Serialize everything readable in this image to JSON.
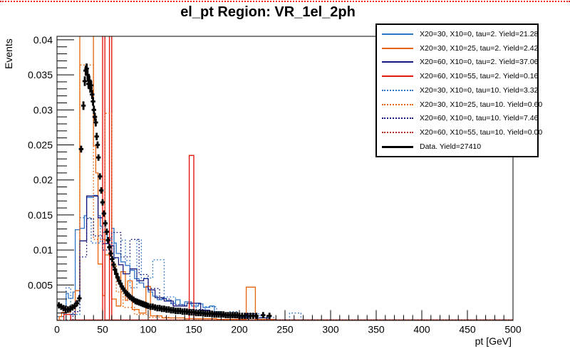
{
  "canvas": {
    "top_line_color": "#e02020",
    "background": "#ffffff"
  },
  "chart_data": {
    "type": "bar",
    "subtype": "overlaid-step-histograms-with-data-points",
    "title": "el_pt Region: VR_1el_2ph",
    "xlabel": "pt [GeV]",
    "ylabel": "Events",
    "xlim": [
      0,
      500
    ],
    "ylim": [
      0,
      0.0405
    ],
    "grid": false,
    "legend_position": "top-right",
    "x_major_ticks": [
      0,
      50,
      100,
      150,
      200,
      250,
      300,
      350,
      400,
      450,
      500
    ],
    "x_minor_step": 10,
    "y_major_ticks": [
      {
        "value": 0.005,
        "label": "0.005"
      },
      {
        "value": 0.01,
        "label": "0.01"
      },
      {
        "value": 0.015,
        "label": "0.015"
      },
      {
        "value": 0.02,
        "label": "0.02"
      },
      {
        "value": 0.025,
        "label": "0.025"
      },
      {
        "value": 0.03,
        "label": "0.03"
      },
      {
        "value": 0.035,
        "label": "0.035"
      },
      {
        "value": 0.04,
        "label": "0.04"
      }
    ],
    "y_minor_step": 0.001,
    "series": [
      {
        "name": "x20-30-x10-0-tau2",
        "label": "X20=30, X10=0, tau=2. Yield=21.28",
        "color": "#2e75c8",
        "line_style": "solid",
        "line_width": 1.3,
        "bins": [
          [
            0,
            0.0005
          ],
          [
            7.5,
            0.001
          ],
          [
            10,
            0.0038
          ],
          [
            12.5,
            0.0031
          ],
          [
            17.5,
            0.004
          ],
          [
            20,
            0.0129
          ],
          [
            25,
            0.0131
          ],
          [
            30,
            0.0149
          ],
          [
            32.5,
            0.0175
          ],
          [
            40,
            0.0178
          ],
          [
            45,
            0.0149
          ],
          [
            47.5,
            0.0134
          ],
          [
            50,
            0.0125
          ],
          [
            55,
            0.0117
          ],
          [
            60,
            0.0131
          ],
          [
            62.5,
            0.011
          ],
          [
            65,
            0.0095
          ],
          [
            70,
            0.0083
          ],
          [
            75,
            0.0078
          ],
          [
            80,
            0.0071
          ],
          [
            85,
            0.0059
          ],
          [
            90,
            0.0053
          ],
          [
            95,
            0.0047
          ],
          [
            100,
            0.004
          ],
          [
            105,
            0.0034
          ],
          [
            110,
            0.0029
          ],
          [
            115,
            0.0031
          ],
          [
            120,
            0.0028
          ],
          [
            125,
            0.0024
          ],
          [
            130,
            0.0029
          ],
          [
            135,
            0.0022
          ],
          [
            140,
            0.0026
          ],
          [
            147.5,
            0.002
          ],
          [
            155,
            0.0023
          ],
          [
            160,
            0.0018
          ],
          [
            167.5,
            0.002
          ],
          [
            172.5,
            0.0012
          ],
          [
            180,
            0.0008
          ],
          [
            190,
            0.0005
          ],
          [
            200,
            0.0003
          ],
          [
            210,
            0
          ],
          [
            500,
            0
          ]
        ]
      },
      {
        "name": "x20-30-x10-25-tau2",
        "label": "X20=30, X10=25, tau=2. Yield=2.42",
        "color": "#e8650e",
        "line_style": "solid",
        "line_width": 1.3,
        "bins": [
          [
            2.5,
            0.0005
          ],
          [
            5,
            0.0011
          ],
          [
            15,
            0.0021
          ],
          [
            20,
            0.0042
          ],
          [
            25,
            0.043
          ],
          [
            40,
            0.0249
          ],
          [
            42.5,
            0.021
          ],
          [
            45,
            0.008
          ],
          [
            50,
            0.0035
          ],
          [
            52.5,
            0.0093
          ],
          [
            60,
            0.003
          ],
          [
            65,
            0.002
          ],
          [
            70,
            0.0069
          ],
          [
            75,
            0.0028
          ],
          [
            77.5,
            0.0056
          ],
          [
            82.5,
            0.0015
          ],
          [
            90,
            0.001
          ],
          [
            97.5,
            0.0048
          ],
          [
            102.5,
            0.0006
          ],
          [
            115,
            0.0003
          ],
          [
            140,
            0.0002
          ],
          [
            175,
            0.0001
          ],
          [
            207.5,
            0.0047
          ],
          [
            217.5,
            0.0001
          ],
          [
            240,
            0
          ],
          [
            500,
            0
          ]
        ]
      },
      {
        "name": "x20-60-x10-0-tau2",
        "label": "X20=60, X10=0, tau=2. Yield=37.06",
        "color": "#17177c",
        "line_style": "solid",
        "line_width": 1.3,
        "bins": [
          [
            15,
            0.0008
          ],
          [
            20,
            0.0027
          ],
          [
            25,
            0.0113
          ],
          [
            32.5,
            0.0177
          ],
          [
            45,
            0.0146
          ],
          [
            50,
            0.0109
          ],
          [
            57.5,
            0.0106
          ],
          [
            62.5,
            0.0089
          ],
          [
            67.5,
            0.0079
          ],
          [
            72.5,
            0.0066
          ],
          [
            80,
            0.0073
          ],
          [
            87.5,
            0.0056
          ],
          [
            95,
            0.0059
          ],
          [
            100,
            0.0043
          ],
          [
            107.5,
            0.0032
          ],
          [
            117.5,
            0.0027
          ],
          [
            127.5,
            0.002
          ],
          [
            142.5,
            0.0024
          ],
          [
            157.5,
            0.0014
          ],
          [
            167.5,
            0.001
          ],
          [
            180,
            0.0006
          ],
          [
            195,
            0.0003
          ],
          [
            207.5,
            0.0009
          ],
          [
            217.5,
            0.0003
          ],
          [
            232.5,
            0
          ],
          [
            500,
            0
          ]
        ]
      },
      {
        "name": "x20-60-x10-55-tau2",
        "label": "X20=60, X10=55, tau=2. Yield=0.16",
        "color": "#e41a10",
        "line_style": "solid",
        "line_width": 1.4,
        "bins": [
          [
            7.5,
            0.0008
          ],
          [
            15,
            0
          ],
          [
            50,
            0.043
          ],
          [
            52.5,
            0
          ],
          [
            57.5,
            0.043
          ],
          [
            60,
            0
          ],
          [
            145,
            0.0235
          ],
          [
            150,
            0
          ],
          [
            500,
            0
          ]
        ]
      },
      {
        "name": "x20-30-x10-0-tau10",
        "label": "X20=30, X10=0, tau=10. Yield=3.32",
        "color": "#2e75c8",
        "line_style": "dotted",
        "line_width": 1.3,
        "bins": [
          [
            10,
            0.0046
          ],
          [
            15,
            0.0008
          ],
          [
            25,
            0.0146
          ],
          [
            37.5,
            0.011
          ],
          [
            47.5,
            0.0132
          ],
          [
            55,
            0.011
          ],
          [
            62.5,
            0.0088
          ],
          [
            70,
            0.0114
          ],
          [
            75,
            0.0085
          ],
          [
            80,
            0.0046
          ],
          [
            87.5,
            0.0115
          ],
          [
            92.5,
            0.006
          ],
          [
            105,
            0.0086
          ],
          [
            117.5,
            0.0033
          ],
          [
            130,
            0.0022
          ],
          [
            142.5,
            0.0023
          ],
          [
            152.5,
            0.001
          ],
          [
            162.5,
            0.0019
          ],
          [
            175,
            0.0008
          ],
          [
            187.5,
            0.0012
          ],
          [
            197.5,
            0.0004
          ],
          [
            212.5,
            0.0009
          ],
          [
            222.5,
            0.0004
          ],
          [
            237.5,
            0
          ],
          [
            255,
            0.001
          ],
          [
            267.5,
            0
          ],
          [
            500,
            0
          ]
        ]
      },
      {
        "name": "x20-30-x10-25-tau10",
        "label": "X20=30, X10=25, tau=10. Yield=0.60",
        "color": "#e8650e",
        "line_style": "dotted",
        "line_width": 1.3,
        "bins": [
          [
            20,
            0.0042
          ],
          [
            25,
            0.0364
          ],
          [
            40,
            0.0115
          ],
          [
            52.5,
            0.0295
          ],
          [
            60,
            0.008
          ],
          [
            65,
            0.004
          ],
          [
            72.5,
            0.0018
          ],
          [
            85,
            0.0008
          ],
          [
            100,
            0.0004
          ],
          [
            125,
            0
          ],
          [
            500,
            0
          ]
        ]
      },
      {
        "name": "x20-60-x10-0-tau10",
        "label": "X20=60, X10=0, tau=10. Yield=7.46",
        "color": "#17177c",
        "line_style": "dotted",
        "line_width": 1.3,
        "bins": [
          [
            17.5,
            0.0012
          ],
          [
            25,
            0.009
          ],
          [
            32.5,
            0.0145
          ],
          [
            40,
            0.012
          ],
          [
            50,
            0.01
          ],
          [
            60,
            0.0125
          ],
          [
            70,
            0.009
          ],
          [
            80,
            0.0115
          ],
          [
            90,
            0.0065
          ],
          [
            100,
            0.0045
          ],
          [
            112.5,
            0.003
          ],
          [
            125,
            0.0022
          ],
          [
            140,
            0.0015
          ],
          [
            160,
            0.001
          ],
          [
            180,
            0.0006
          ],
          [
            200,
            0.0003
          ],
          [
            220,
            0
          ],
          [
            500,
            0
          ]
        ]
      },
      {
        "name": "x20-60-x10-55-tau10",
        "label": "X20=60, X10=55, tau=10. Yield=0.00",
        "color": "#b22a22",
        "line_style": "dotted",
        "line_width": 1.3,
        "bins": [
          [
            0,
            0
          ],
          [
            500,
            0
          ]
        ]
      }
    ],
    "data_series": {
      "name": "data",
      "label": "Data. Yield=27410",
      "color": "#000000",
      "marker": "plus-with-error-bars",
      "points": [
        [
          2,
          0.0021
        ],
        [
          4.5,
          0.0019
        ],
        [
          7,
          0.0017
        ],
        [
          9.5,
          0.0015
        ],
        [
          12,
          0.0015
        ],
        [
          14.5,
          0.0016
        ],
        [
          17,
          0.0018
        ],
        [
          19.5,
          0.002
        ],
        [
          22,
          0.0024
        ],
        [
          24.5,
          0.0031
        ],
        [
          26.5,
          0.0244
        ],
        [
          29,
          0.0306
        ],
        [
          30.5,
          0.0341
        ],
        [
          31.5,
          0.0356
        ],
        [
          32.5,
          0.0359
        ],
        [
          33.5,
          0.035
        ],
        [
          34.5,
          0.0337
        ],
        [
          35.5,
          0.0342
        ],
        [
          36.5,
          0.0331
        ],
        [
          37.5,
          0.0335
        ],
        [
          38.5,
          0.0322
        ],
        [
          39.5,
          0.0312
        ],
        [
          40.5,
          0.03
        ],
        [
          41.5,
          0.029
        ],
        [
          42.5,
          0.0282
        ],
        [
          43.5,
          0.0262
        ],
        [
          44.5,
          0.025
        ],
        [
          45.5,
          0.0232
        ],
        [
          47,
          0.0205
        ],
        [
          48.5,
          0.0185
        ],
        [
          50,
          0.0168
        ],
        [
          51.5,
          0.0152
        ],
        [
          53,
          0.0138
        ],
        [
          54.5,
          0.0126
        ],
        [
          56,
          0.0114
        ],
        [
          57.5,
          0.0104
        ],
        [
          59,
          0.0095
        ],
        [
          60.5,
          0.0087
        ],
        [
          62,
          0.0079
        ],
        [
          63.5,
          0.0072
        ],
        [
          65,
          0.0066
        ],
        [
          66.5,
          0.0061
        ],
        [
          68,
          0.0056
        ],
        [
          69.5,
          0.0052
        ],
        [
          71,
          0.0048
        ],
        [
          72.5,
          0.0045
        ],
        [
          74,
          0.0042
        ],
        [
          75.5,
          0.0039
        ],
        [
          77,
          0.0037
        ],
        [
          78.5,
          0.0035
        ],
        [
          80,
          0.0033
        ],
        [
          82,
          0.0031
        ],
        [
          84,
          0.0029
        ],
        [
          86,
          0.0027
        ],
        [
          88,
          0.0026
        ],
        [
          90,
          0.0025
        ],
        [
          92,
          0.0024
        ],
        [
          94,
          0.0023
        ],
        [
          96,
          0.0022
        ],
        [
          98,
          0.0021
        ],
        [
          100,
          0.002
        ],
        [
          102.5,
          0.0019
        ],
        [
          105,
          0.0019
        ],
        [
          107.5,
          0.0018
        ],
        [
          110,
          0.0017
        ],
        [
          112.5,
          0.0017
        ],
        [
          115,
          0.0016
        ],
        [
          117.5,
          0.0016
        ],
        [
          120,
          0.0015
        ],
        [
          122.5,
          0.0015
        ],
        [
          125,
          0.0014
        ],
        [
          127.5,
          0.0014
        ],
        [
          130,
          0.0013
        ],
        [
          132.5,
          0.0013
        ],
        [
          135,
          0.0013
        ],
        [
          137.5,
          0.0012
        ],
        [
          140,
          0.0012
        ],
        [
          142.5,
          0.0012
        ],
        [
          145,
          0.0011
        ],
        [
          147.5,
          0.0011
        ],
        [
          150,
          0.0011
        ],
        [
          152.5,
          0.001
        ],
        [
          155,
          0.001
        ],
        [
          157.5,
          0.001
        ],
        [
          160,
          0.001
        ],
        [
          162.5,
          0.0009
        ],
        [
          165,
          0.0009
        ],
        [
          167.5,
          0.0009
        ],
        [
          170,
          0.0009
        ],
        [
          172.5,
          0.0008
        ],
        [
          175,
          0.0008
        ],
        [
          177.5,
          0.0008
        ],
        [
          180,
          0.0008
        ],
        [
          182.5,
          0.0008
        ],
        [
          185,
          0.0007
        ],
        [
          187.5,
          0.0007
        ],
        [
          190,
          0.0007
        ],
        [
          192.5,
          0.0007
        ],
        [
          195,
          0.0007
        ],
        [
          197.5,
          0.0007
        ],
        [
          200,
          0.0006
        ],
        [
          203,
          0.0006
        ],
        [
          206,
          0.0006
        ],
        [
          209,
          0.0006
        ],
        [
          212,
          0.0006
        ],
        [
          215,
          0.0006
        ],
        [
          218.5,
          0.0006
        ],
        [
          226,
          0.0007
        ],
        [
          233,
          0.0006
        ]
      ]
    }
  }
}
